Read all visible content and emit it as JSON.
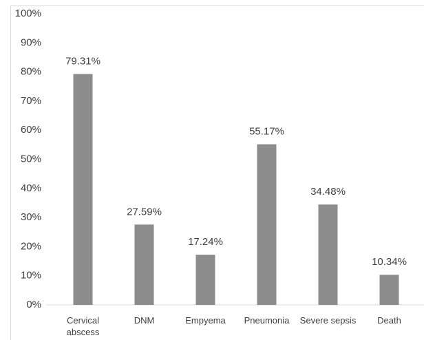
{
  "chart_data": {
    "type": "bar",
    "categories": [
      "Cervical abscess",
      "DNM",
      "Empyema",
      "Pneumonia",
      "Severe sepsis",
      "Death"
    ],
    "values": [
      79.31,
      27.59,
      17.24,
      55.17,
      34.48,
      10.34
    ],
    "value_labels": [
      "79.31%",
      "27.59%",
      "17.24%",
      "55.17%",
      "34.48%",
      "10.34%"
    ],
    "color": "#8c8c8c",
    "ylim": [
      0,
      100
    ],
    "yticks": [
      {
        "value": 0,
        "label": "0%"
      },
      {
        "value": 10,
        "label": "10%"
      },
      {
        "value": 20,
        "label": "20%"
      },
      {
        "value": 30,
        "label": "30%"
      },
      {
        "value": 40,
        "label": "40%"
      },
      {
        "value": 50,
        "label": "50%"
      },
      {
        "value": 60,
        "label": "60%"
      },
      {
        "value": 70,
        "label": "70%"
      },
      {
        "value": 80,
        "label": "80%"
      },
      {
        "value": 90,
        "label": "90%"
      },
      {
        "value": 100,
        "label": "100%"
      }
    ],
    "grid": false
  }
}
